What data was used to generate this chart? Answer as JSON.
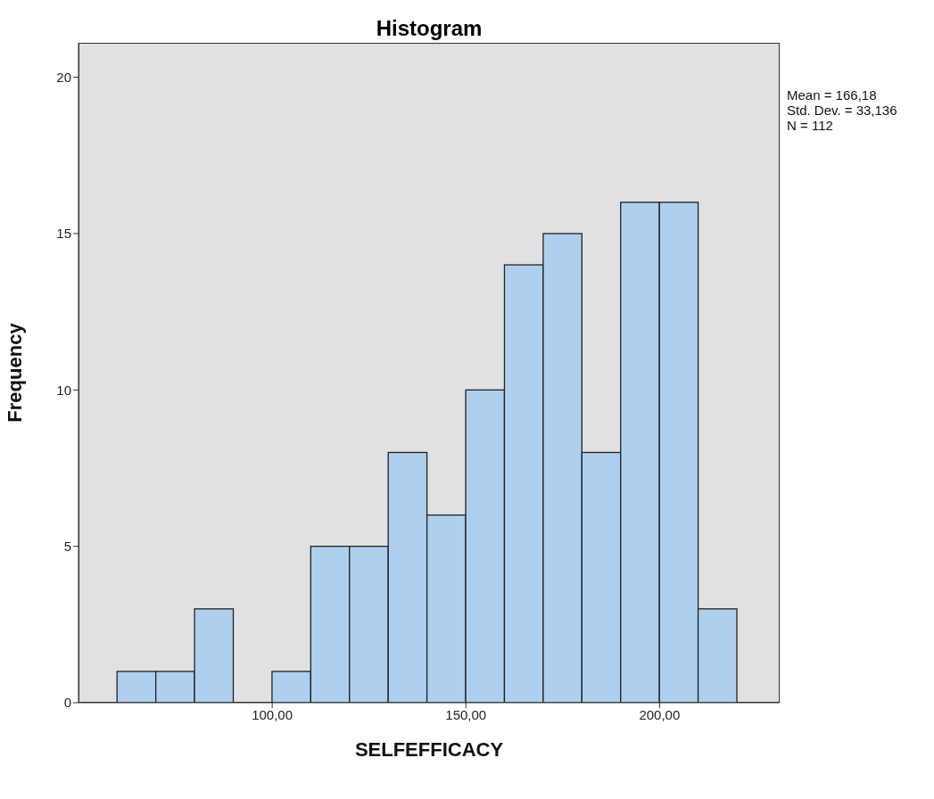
{
  "chart_data": {
    "type": "histogram",
    "title": "Histogram",
    "xlabel": "SELFEFFICACY",
    "ylabel": "Frequency",
    "bins": [
      60,
      70,
      80,
      90,
      100,
      110,
      120,
      130,
      140,
      150,
      160,
      170,
      180,
      190,
      200,
      210,
      220
    ],
    "values": [
      1,
      1,
      3,
      0,
      1,
      5,
      5,
      8,
      6,
      10,
      14,
      15,
      8,
      16,
      16,
      3
    ],
    "color": "#aed0ee",
    "xlim": [
      50,
      231
    ],
    "xticks": [
      {
        "value": 100,
        "label": "100,00"
      },
      {
        "value": 150,
        "label": "150,00"
      },
      {
        "value": 200,
        "label": "200,00"
      }
    ],
    "ylim": [
      0,
      21.1
    ],
    "yticks": [
      0,
      5,
      10,
      15,
      20
    ],
    "grid": false,
    "annotations": [
      "Mean = 166,18",
      "Std. Dev. = 33,136",
      "N = 112"
    ]
  }
}
